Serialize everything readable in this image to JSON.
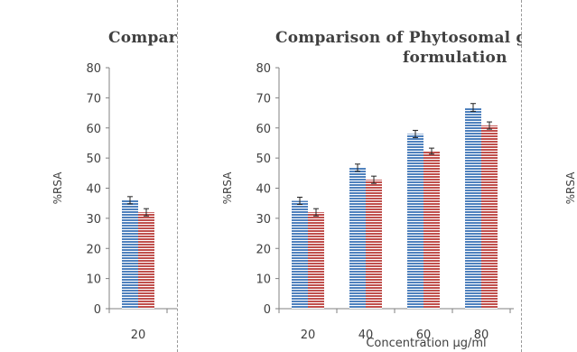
{
  "colors": {
    "series1": "#4f81bd",
    "series2": "#c0504d",
    "axis": "#808080",
    "text": "#404040"
  },
  "chart_data": [
    {
      "type": "bar",
      "title": "Compar",
      "xlabel": "",
      "ylabel": "%RSA",
      "ylim": [
        0,
        80
      ],
      "yticks": [
        "0",
        "10",
        "20",
        "30",
        "40",
        "50",
        "60",
        "70",
        "80"
      ],
      "categories": [
        "20"
      ],
      "series": [
        {
          "values": [
            36
          ],
          "errors": [
            1.2
          ]
        },
        {
          "values": [
            32
          ],
          "errors": [
            1.2
          ]
        }
      ]
    },
    {
      "type": "bar",
      "title": "Comparison of Phytosomal ge",
      "title_line2": "formulation",
      "xlabel": "Concentration µg/ml",
      "ylabel": "%RSA",
      "ylim": [
        0,
        80
      ],
      "yticks": [
        "0",
        "10",
        "20",
        "30",
        "40",
        "50",
        "60",
        "70",
        "80"
      ],
      "categories": [
        "20",
        "40",
        "60",
        "80"
      ],
      "series": [
        {
          "values": [
            35.8,
            46.8,
            58,
            66.8
          ],
          "errors": [
            1.2,
            1.2,
            1.2,
            1.3
          ]
        },
        {
          "values": [
            32,
            42.8,
            52.3,
            60.8
          ],
          "errors": [
            1.2,
            1.2,
            1.0,
            1.2
          ]
        }
      ]
    },
    {
      "type": "bar",
      "ylabel": "%RSA",
      "categories": [],
      "series": []
    }
  ]
}
